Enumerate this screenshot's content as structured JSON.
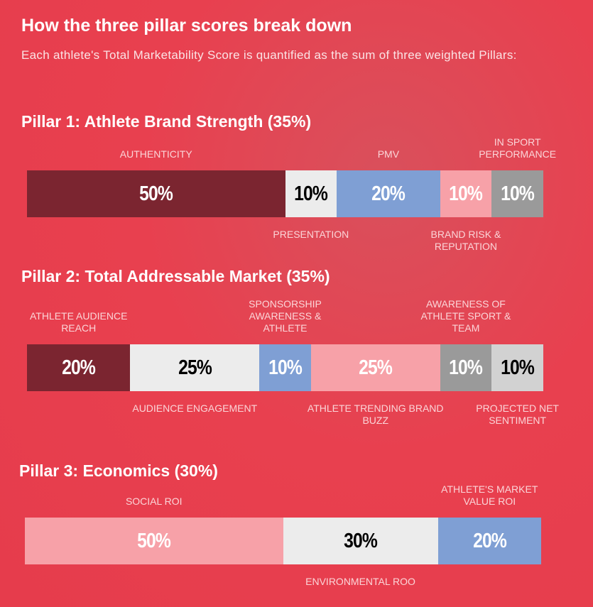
{
  "header": {
    "title": "How the three pillar scores break down",
    "subtitle": "Each athlete's Total Marketability Score is quantified as the sum of three weighted Pillars:"
  },
  "pillars": [
    {
      "title": "Pillar 1: Athlete Brand Strength (35%)",
      "labels": [
        "AUTHENTICITY",
        "PRESENTATION",
        "PMV",
        "BRAND RISK & REPUTATION",
        "IN SPORT PERFORMANCE"
      ],
      "values": [
        50,
        10,
        20,
        10,
        10
      ],
      "value_labels": [
        "50%",
        "10%",
        "20%",
        "10%",
        "10%"
      ],
      "colors": [
        "#7b2530",
        "#ececec",
        "#7f9fd4",
        "#f7a1a8",
        "#9a9a9a"
      ]
    },
    {
      "title": "Pillar 2: Total Addressable Market (35%)",
      "labels": [
        "ATHLETE AUDIENCE REACH",
        "AUDIENCE ENGAGEMENT",
        "SPONSORSHIP AWARENESS & ATHLETE",
        "ATHLETE TRENDING BRAND BUZZ",
        "AWARENESS OF ATHLETE SPORT & TEAM",
        "PROJECTED NET SENTIMENT"
      ],
      "values": [
        20,
        25,
        10,
        25,
        10,
        10
      ],
      "value_labels": [
        "20%",
        "25%",
        "10%",
        "25%",
        "10%",
        "10%"
      ],
      "colors": [
        "#7b2530",
        "#ececec",
        "#7f9fd4",
        "#f7a1a8",
        "#9a9a9a",
        "#d2d2d2"
      ]
    },
    {
      "title": "Pillar 3: Economics (30%)",
      "labels": [
        "SOCIAL ROI",
        "ENVIRONMENTAL ROO",
        "ATHLETE'S MARKET VALUE ROI"
      ],
      "values": [
        50,
        30,
        20
      ],
      "value_labels": [
        "50%",
        "30%",
        "20%"
      ],
      "colors": [
        "#f7a1a8",
        "#ececec",
        "#7f9fd4"
      ]
    }
  ]
}
